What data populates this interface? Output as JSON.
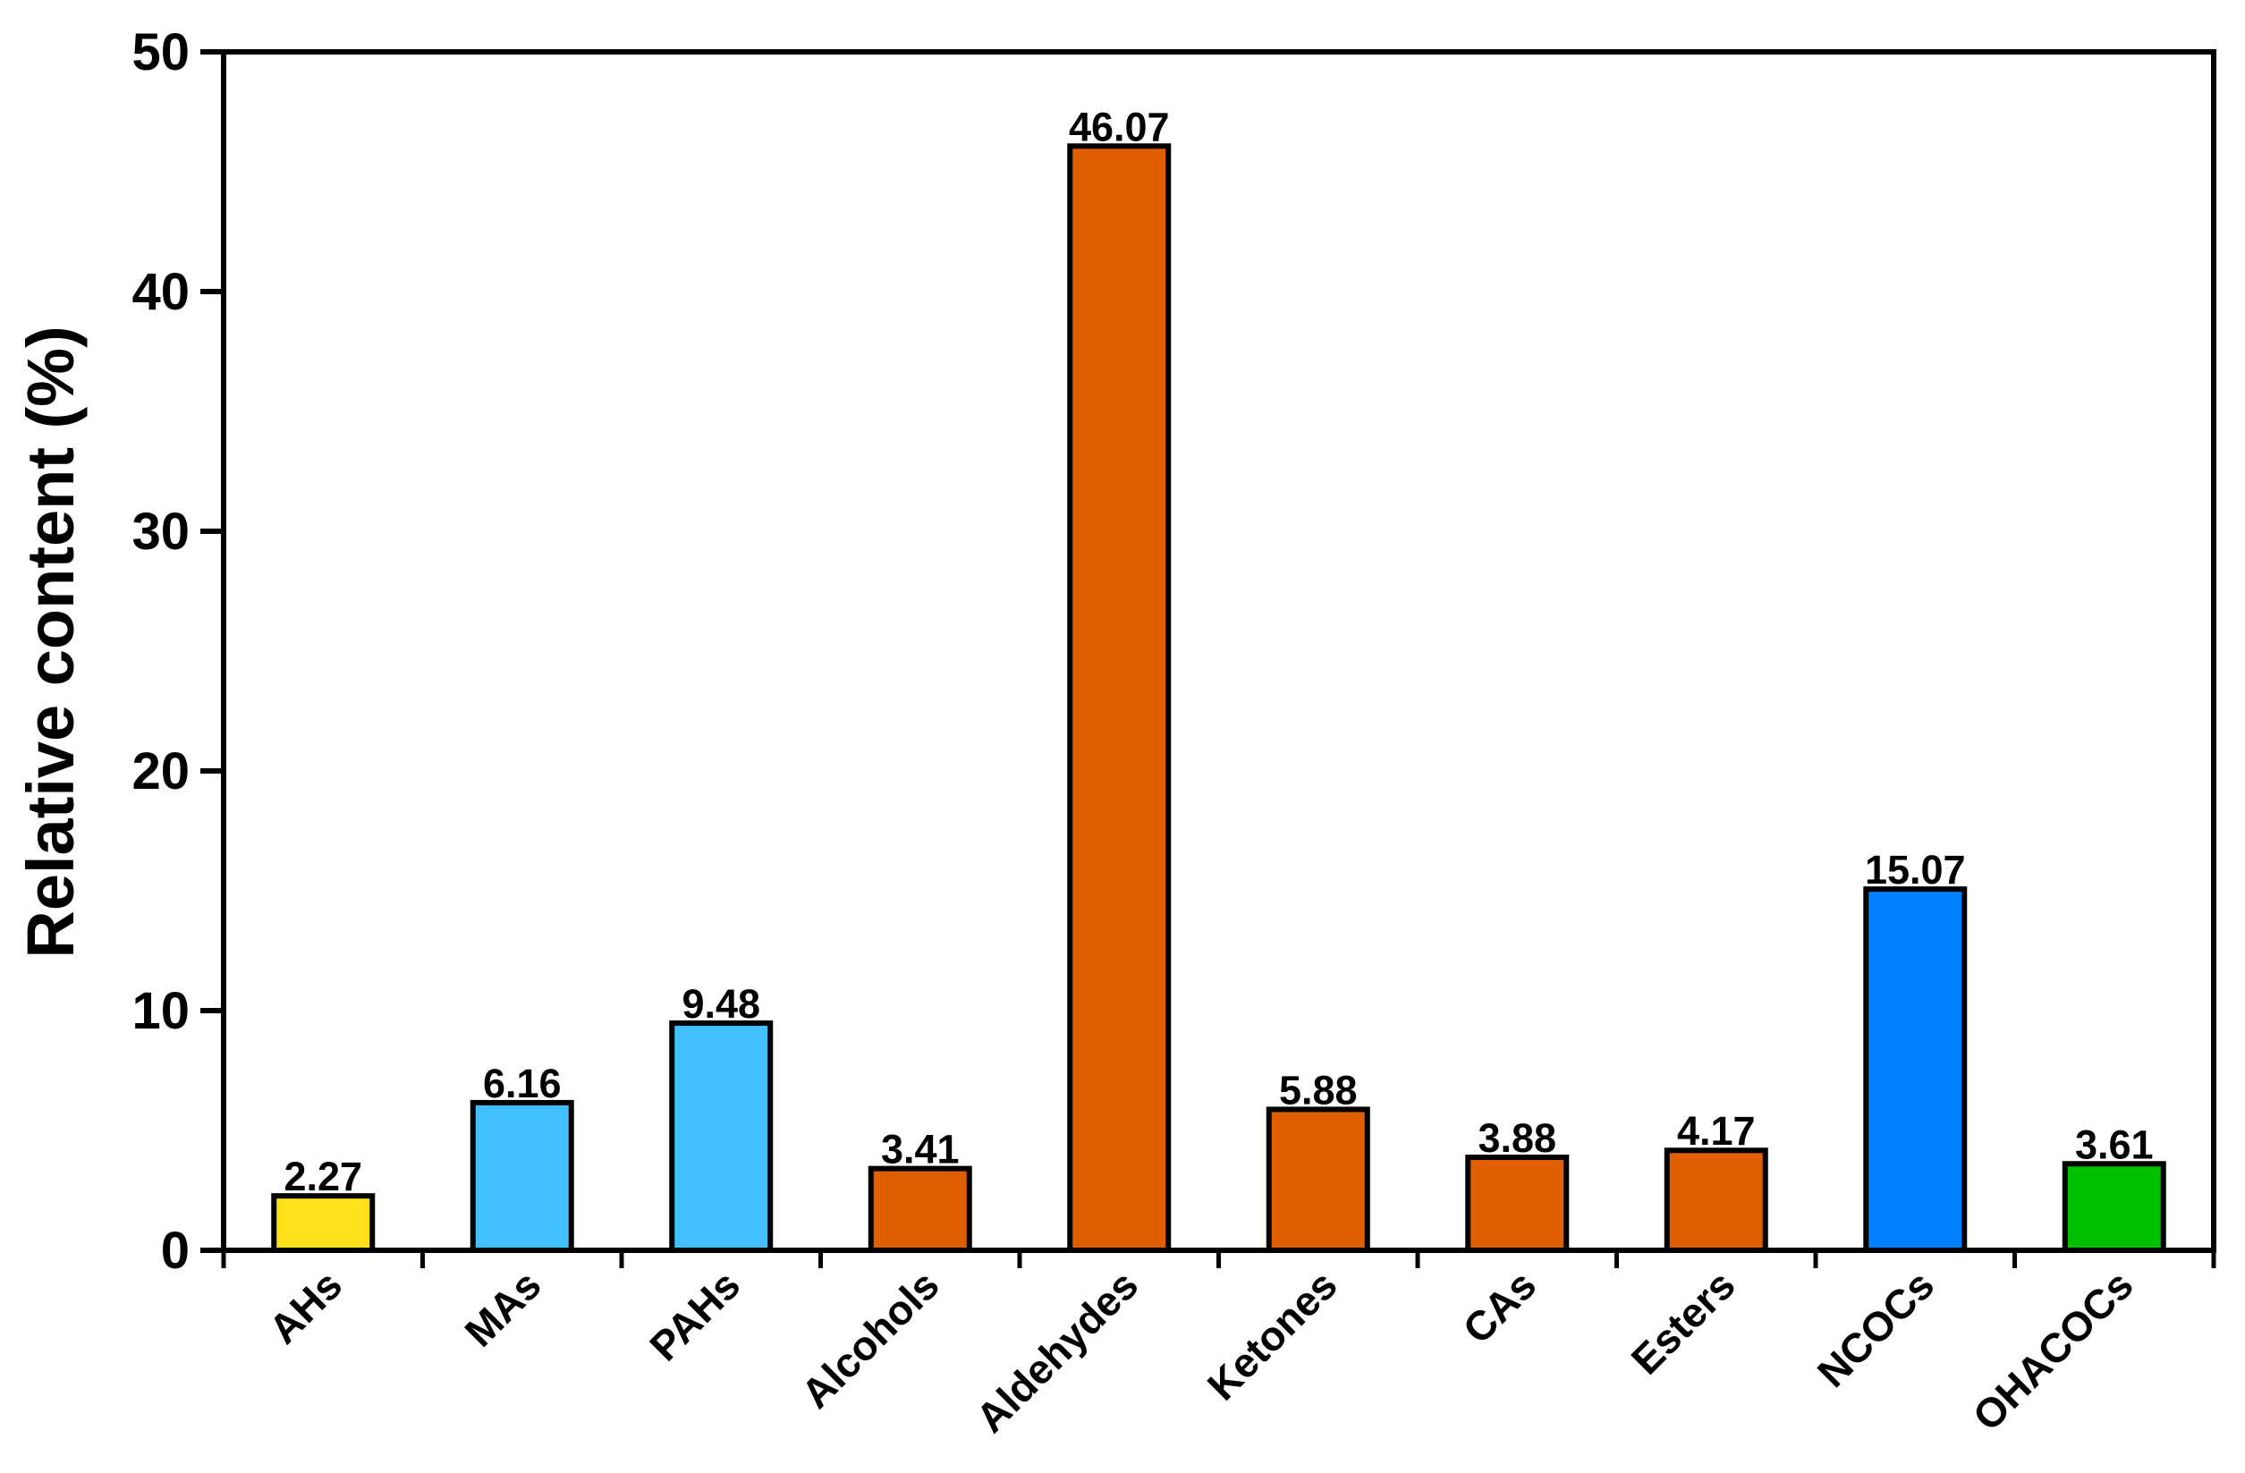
{
  "chart_data": {
    "type": "bar",
    "title": "",
    "xlabel": "",
    "ylabel": "Relative content (%)",
    "ylim": [
      0,
      50
    ],
    "yticks": [
      0,
      10,
      20,
      30,
      40,
      50
    ],
    "grid": false,
    "categories": [
      "AHs",
      "MAs",
      "PAHs",
      "Alcohols",
      "Aldehydes",
      "Ketones",
      "CAs",
      "Esters",
      "NCOCs",
      "OHACOCs"
    ],
    "values": [
      2.27,
      6.16,
      9.48,
      3.41,
      46.07,
      5.88,
      3.88,
      4.17,
      15.07,
      3.61
    ],
    "data_labels": [
      "2.27",
      "6.16",
      "9.48",
      "3.41",
      "46.07",
      "5.88",
      "3.88",
      "4.17",
      "15.07",
      "3.61"
    ],
    "bar_colors": [
      "#FFE01A",
      "#40C0FF",
      "#40C0FF",
      "#E06000",
      "#E06000",
      "#E06000",
      "#E06000",
      "#E06000",
      "#0080FF",
      "#00C000"
    ]
  }
}
